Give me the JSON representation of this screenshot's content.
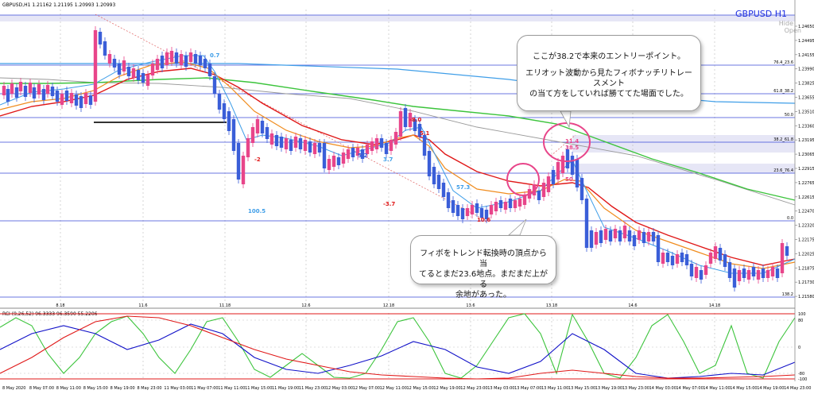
{
  "main": {
    "info": "GBPUSD,H1  1.21162 1.21195 1.20993 1.20993",
    "symbol_title": "GBPUSD H1",
    "hide_label": "Hide",
    "open_label": "Open",
    "price_labels": [
      "1.24650",
      "1.24495",
      "1.24155",
      "1.23990",
      "1.23825",
      "1.23655",
      "1.23510",
      "1.23360",
      "1.23195",
      "1.23065",
      "1.22915",
      "1.22765",
      "1.22615",
      "1.22470",
      "1.22320",
      "1.22175",
      "1.22025",
      "1.21875",
      "1.21730",
      "1.21580"
    ],
    "fibo_labels": [
      "76.4_23.6",
      "61.8_38.2",
      "50.0",
      "38.2_61.8",
      "23.6_76.4",
      "0.0",
      "138.2"
    ],
    "date_markers": [
      "8.18",
      "11.6",
      "11.18",
      "12.6",
      "12.18",
      "13.6",
      "13.18",
      "14.6",
      "14.18"
    ],
    "wave_labels": {
      "w07": "0.7",
      "wm2": "-2",
      "w100": "100.5",
      "w52": "5.2",
      "w37": "3.7",
      "w80": "-8.0",
      "w51": "5.1",
      "wm37": "-3.7",
      "w573": "57.3",
      "w106": "10.6",
      "w114": "11.4",
      "w385": "38.5",
      "w50b": "50."
    }
  },
  "rci": {
    "label": "RCI (9,26,52)  96.3333  96.3590  55.2206",
    "levels": [
      "100",
      "80",
      "0",
      "-80",
      "-100"
    ],
    "time_labels": [
      "8 May 2020",
      "8 May 07:00",
      "8 May 11:00",
      "8 May 15:00",
      "8 May 19:00",
      "8 May 23:00",
      "11 May 03:00",
      "11 May 07:00",
      "11 May 11:00",
      "11 May 15:00",
      "11 May 19:00",
      "11 May 23:00",
      "12 May 03:00",
      "12 May 07:00",
      "12 May 11:00",
      "12 May 15:00",
      "12 May 19:00",
      "12 May 23:00",
      "13 May 03:00",
      "13 May 07:00",
      "13 May 11:00",
      "13 May 15:00",
      "13 May 19:00",
      "13 May 23:00",
      "14 May 03:00",
      "14 May 07:00",
      "14 May 11:00",
      "14 May 15:00",
      "14 May 19:00",
      "14 May 23:00"
    ]
  },
  "callouts": {
    "entry_line1": "ここが38.2で本来のエントリーポイント。",
    "entry_line2": "エリオット波動から見たフィボナッチリトレースメント",
    "entry_line3": "の当て方をしていれば勝ててた場面でした。",
    "fibo_line1": "フィボをトレンド転換時の頂点から当",
    "fibo_line2": "てるとまだ23.6地点。まだまだ上がる",
    "fibo_line3": "余地があった。"
  },
  "colors": {
    "bull": "#e8458a",
    "bear": "#3a5ed8",
    "ma_fast": "#3f9ee8",
    "ma_orange": "#f08c1e",
    "ma_red": "#e01818",
    "ma_green": "#3cc43c",
    "ma_blue_slow": "#3f9ee8",
    "ma_gray": "#9a9a9a",
    "fibo_line": "#3a4ad8",
    "circle": "#e8458a",
    "rci_green": "#3cc43c",
    "rci_blue": "#1010c8",
    "rci_red": "#e01818"
  }
}
